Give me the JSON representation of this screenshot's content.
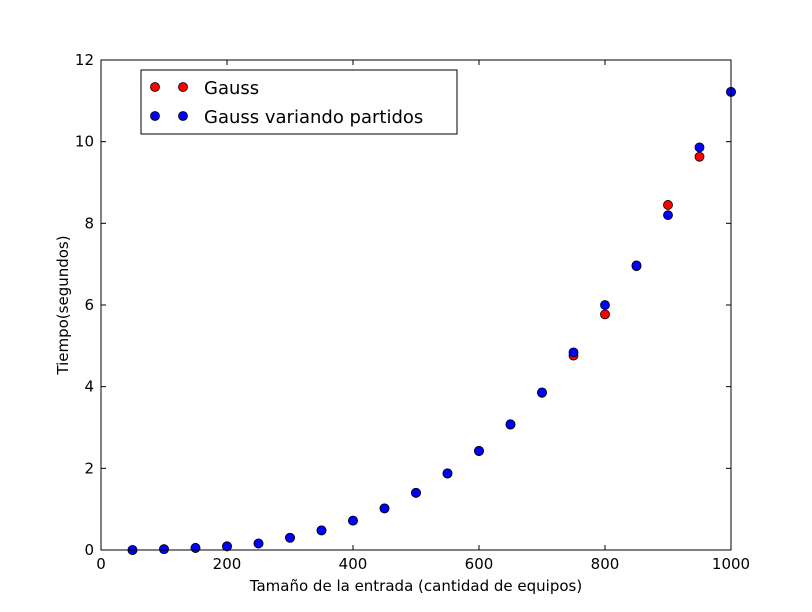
{
  "chart_data": {
    "type": "scatter",
    "xlabel": "Tamaño de la entrada (cantidad de equipos)",
    "ylabel": "Tiempo(segundos)",
    "xlim": [
      0,
      1000
    ],
    "ylim": [
      0,
      12
    ],
    "xticks": [
      "0",
      "200",
      "400",
      "600",
      "800",
      "1000"
    ],
    "yticks": [
      "0",
      "2",
      "4",
      "6",
      "8",
      "10",
      "12"
    ],
    "grid": false,
    "legend_position": "upper-left",
    "series": [
      {
        "name": "Gauss",
        "color": "#ff0000",
        "x": [
          50,
          100,
          150,
          200,
          250,
          300,
          350,
          400,
          450,
          500,
          550,
          600,
          650,
          700,
          750,
          800,
          850,
          900,
          950,
          1000
        ],
        "y": [
          0.0,
          0.02,
          0.05,
          0.09,
          0.16,
          0.3,
          0.48,
          0.72,
          1.02,
          1.4,
          1.87,
          2.42,
          3.07,
          3.85,
          4.76,
          5.77,
          6.95,
          8.45,
          9.63,
          11.22
        ]
      },
      {
        "name": "Gauss variando partidos",
        "color": "#0000ff",
        "x": [
          50,
          100,
          150,
          200,
          250,
          300,
          350,
          400,
          450,
          500,
          550,
          600,
          650,
          700,
          750,
          800,
          850,
          900,
          950,
          1000
        ],
        "y": [
          0.0,
          0.02,
          0.05,
          0.09,
          0.16,
          0.3,
          0.48,
          0.72,
          1.02,
          1.4,
          1.88,
          2.43,
          3.08,
          3.86,
          4.84,
          6.0,
          6.97,
          8.2,
          9.86,
          11.22
        ]
      }
    ]
  }
}
